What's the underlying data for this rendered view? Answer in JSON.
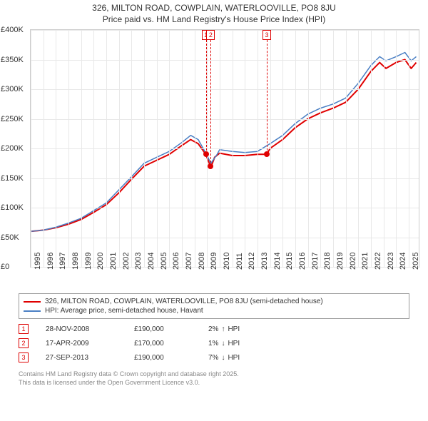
{
  "title": {
    "line1": "326, MILTON ROAD, COWPLAIN, WATERLOOVILLE, PO8 8JU",
    "line2": "Price paid vs. HM Land Registry's House Price Index (HPI)",
    "fontsize": 12,
    "color": "#333333"
  },
  "chart": {
    "type": "line",
    "x_axis": {
      "min": 1995,
      "max": 2025.8,
      "ticks": [
        1995,
        1996,
        1997,
        1998,
        1999,
        2000,
        2001,
        2002,
        2003,
        2004,
        2005,
        2006,
        2007,
        2008,
        2009,
        2010,
        2011,
        2012,
        2013,
        2014,
        2015,
        2016,
        2017,
        2018,
        2019,
        2020,
        2021,
        2022,
        2023,
        2024,
        2025
      ],
      "label_fontsize": 11,
      "label_rotation": -90,
      "grid_color": "#e8e8e8"
    },
    "y_axis": {
      "min": 0,
      "max": 400000,
      "ticks": [
        0,
        50000,
        100000,
        150000,
        200000,
        250000,
        300000,
        350000,
        400000
      ],
      "tick_labels": [
        "£0",
        "£50K",
        "£100K",
        "£150K",
        "£200K",
        "£250K",
        "£300K",
        "£350K",
        "£400K"
      ],
      "label_fontsize": 11,
      "grid_color": "#e8e8e8"
    },
    "background_color": "#ffffff",
    "border_color": "#cccccc",
    "series": [
      {
        "name": "326, MILTON ROAD, COWPLAIN, WATERLOOVILLE, PO8 8JU (semi-detached house)",
        "color": "#e00000",
        "line_width": 2,
        "points": [
          [
            1995,
            60000
          ],
          [
            1996,
            62000
          ],
          [
            1997,
            66000
          ],
          [
            1998,
            72000
          ],
          [
            1999,
            80000
          ],
          [
            2000,
            92000
          ],
          [
            2001,
            105000
          ],
          [
            2002,
            125000
          ],
          [
            2003,
            148000
          ],
          [
            2004,
            170000
          ],
          [
            2005,
            180000
          ],
          [
            2006,
            190000
          ],
          [
            2007,
            205000
          ],
          [
            2007.7,
            215000
          ],
          [
            2008.3,
            208000
          ],
          [
            2008.9,
            190000
          ],
          [
            2009.3,
            168000
          ],
          [
            2009.6,
            185000
          ],
          [
            2010,
            192000
          ],
          [
            2011,
            188000
          ],
          [
            2012,
            188000
          ],
          [
            2013,
            190000
          ],
          [
            2013.74,
            190000
          ],
          [
            2014,
            200000
          ],
          [
            2015,
            215000
          ],
          [
            2016,
            235000
          ],
          [
            2017,
            250000
          ],
          [
            2018,
            260000
          ],
          [
            2019,
            268000
          ],
          [
            2020,
            278000
          ],
          [
            2021,
            300000
          ],
          [
            2022,
            330000
          ],
          [
            2022.7,
            345000
          ],
          [
            2023.2,
            335000
          ],
          [
            2024,
            345000
          ],
          [
            2024.7,
            350000
          ],
          [
            2025.2,
            335000
          ],
          [
            2025.6,
            345000
          ]
        ]
      },
      {
        "name": "HPI: Average price, semi-detached house, Havant",
        "color": "#4a7fc4",
        "line_width": 1.5,
        "points": [
          [
            1995,
            60000
          ],
          [
            1996,
            62000
          ],
          [
            1997,
            67000
          ],
          [
            1998,
            74000
          ],
          [
            1999,
            82000
          ],
          [
            2000,
            95000
          ],
          [
            2001,
            108000
          ],
          [
            2002,
            130000
          ],
          [
            2003,
            152000
          ],
          [
            2004,
            175000
          ],
          [
            2005,
            185000
          ],
          [
            2006,
            195000
          ],
          [
            2007,
            210000
          ],
          [
            2007.7,
            222000
          ],
          [
            2008.3,
            215000
          ],
          [
            2008.9,
            192000
          ],
          [
            2009.3,
            175000
          ],
          [
            2009.8,
            190000
          ],
          [
            2010,
            198000
          ],
          [
            2011,
            195000
          ],
          [
            2012,
            193000
          ],
          [
            2013,
            195000
          ],
          [
            2014,
            208000
          ],
          [
            2015,
            222000
          ],
          [
            2016,
            242000
          ],
          [
            2017,
            258000
          ],
          [
            2018,
            268000
          ],
          [
            2019,
            275000
          ],
          [
            2020,
            285000
          ],
          [
            2021,
            310000
          ],
          [
            2022,
            340000
          ],
          [
            2022.7,
            355000
          ],
          [
            2023.2,
            348000
          ],
          [
            2024,
            355000
          ],
          [
            2024.7,
            362000
          ],
          [
            2025.2,
            348000
          ],
          [
            2025.6,
            355000
          ]
        ]
      }
    ],
    "markers": [
      {
        "idx": "1",
        "x": 2008.91,
        "y": 190000,
        "dot_color": "#e00000"
      },
      {
        "idx": "2",
        "x": 2009.29,
        "y": 170000,
        "dot_color": "#e00000"
      },
      {
        "idx": "3",
        "x": 2013.74,
        "y": 190000,
        "dot_color": "#e00000"
      }
    ],
    "marker_box": {
      "border_color": "#d00000",
      "text_color": "#d00000",
      "bg": "#ffffff",
      "fontsize": 9
    }
  },
  "legend": {
    "border_color": "#999999",
    "fontsize": 10,
    "items": [
      {
        "color": "#e00000",
        "label": "326, MILTON ROAD, COWPLAIN, WATERLOOVILLE, PO8 8JU (semi-detached house)"
      },
      {
        "color": "#4a7fc4",
        "label": "HPI: Average price, semi-detached house, Havant"
      }
    ]
  },
  "sales": {
    "fontsize": 10,
    "hpi_label": "HPI",
    "rows": [
      {
        "idx": "1",
        "date": "28-NOV-2008",
        "price": "£190,000",
        "diff_pct": "2%",
        "arrow": "↑"
      },
      {
        "idx": "2",
        "date": "17-APR-2009",
        "price": "£170,000",
        "diff_pct": "1%",
        "arrow": "↓"
      },
      {
        "idx": "3",
        "date": "27-SEP-2013",
        "price": "£190,000",
        "diff_pct": "7%",
        "arrow": "↓"
      }
    ]
  },
  "credits": {
    "line1": "Contains HM Land Registry data © Crown copyright and database right 2025.",
    "line2": "This data is licensed under the Open Government Licence v3.0.",
    "color": "#888888",
    "fontsize": 9
  }
}
